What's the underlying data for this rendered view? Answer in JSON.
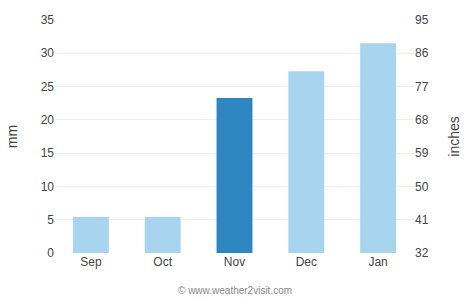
{
  "chart_data": {
    "type": "bar",
    "categories": [
      "Sep",
      "Oct",
      "Nov",
      "Dec",
      "Jan"
    ],
    "values": [
      5.4,
      5.4,
      23.3,
      27.3,
      31.5
    ],
    "colors": [
      "#a8d4f0",
      "#a8d4f0",
      "#2e86c1",
      "#a8d4f0",
      "#a8d4f0"
    ],
    "ylabel": "mm",
    "y2label": "inches",
    "ylim": [
      0,
      35
    ],
    "yticks": [
      0,
      5,
      10,
      15,
      20,
      25,
      30,
      35
    ],
    "y2lim": [
      32,
      95
    ],
    "y2ticks": [
      32,
      41,
      50,
      59,
      68,
      77,
      86,
      95
    ],
    "grid": true,
    "footnote": "© www.weather2visit.com"
  }
}
